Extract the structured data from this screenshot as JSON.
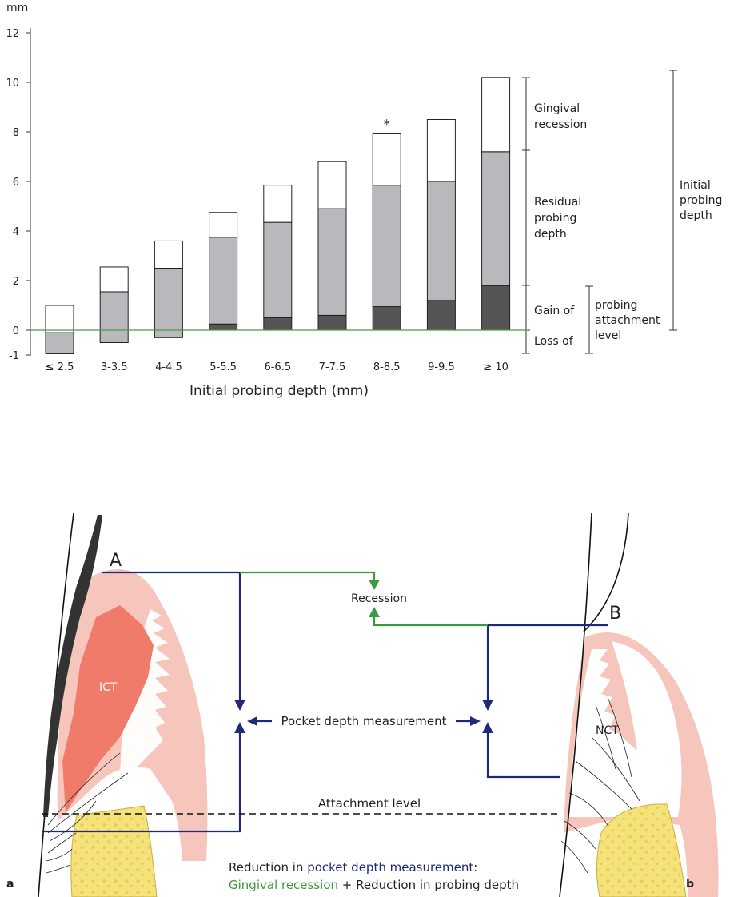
{
  "chart_data": {
    "type": "bar",
    "ylabel": "mm",
    "xlabel": "Initial probing depth (mm)",
    "ylim": [
      -1,
      12
    ],
    "yticks": [
      12,
      10,
      8,
      6,
      4,
      2,
      0,
      -1
    ],
    "categories": [
      "≤ 2.5",
      "3-3.5",
      "4-4.5",
      "5-5.5",
      "6-6.5",
      "7-7.5",
      "8-8.5",
      "9-9.5",
      "≥ 10"
    ],
    "series": [
      {
        "name": "Gingival recession",
        "values": [
          1.1,
          1.0,
          1.1,
          1.0,
          1.5,
          1.9,
          2.1,
          2.5,
          3.0
        ]
      },
      {
        "name": "Residual probing depth",
        "values": [
          0.85,
          2.05,
          2.8,
          3.5,
          3.85,
          4.3,
          4.9,
          4.8,
          5.4
        ]
      },
      {
        "name": "Gain of probing attachment level",
        "values": [
          0,
          0,
          0,
          0.25,
          0.5,
          0.6,
          0.95,
          1.2,
          1.8
        ]
      },
      {
        "name": "Loss of probing attachment level",
        "values": [
          -0.95,
          -0.5,
          -0.3,
          0,
          0,
          0,
          0,
          0,
          0
        ]
      }
    ],
    "annotations": [
      {
        "category": "8-8.5",
        "text": "*"
      }
    ],
    "brackets": {
      "gingival_recession": [
        "Gingival",
        "recession"
      ],
      "residual": [
        "Residual",
        "probing",
        "depth"
      ],
      "gain_of": "Gain of",
      "loss_of": "Loss of",
      "attachment": [
        "probing",
        "attachment",
        "level"
      ],
      "initial": [
        "Initial",
        "probing",
        "depth"
      ]
    },
    "colors": {
      "recession": "#ffffff",
      "residual": "#b8b8bd",
      "gain": "#555555",
      "zero_line": "#4a9a4a"
    }
  },
  "diagram": {
    "label_a": "A",
    "label_b": "B",
    "recession": "Recession",
    "pocket": "Pocket depth measurement",
    "attachment": "Attachment level",
    "ict": "ICT",
    "nct": "NCT",
    "caption_line1_prefix": "Reduction in ",
    "caption_line1_highlight": "pocket depth measurement",
    "caption_line1_suffix": ":",
    "caption_line2_green": "Gingival recession",
    "caption_line2_rest": " + Reduction in probing depth",
    "panel_a": "a",
    "panel_b": "b",
    "colors": {
      "navy": "#1e2a78",
      "green": "#3e9a3e",
      "gingiva": "#f6c6bd",
      "ict": "#f07b6b",
      "bone": "#f5e27a"
    }
  }
}
